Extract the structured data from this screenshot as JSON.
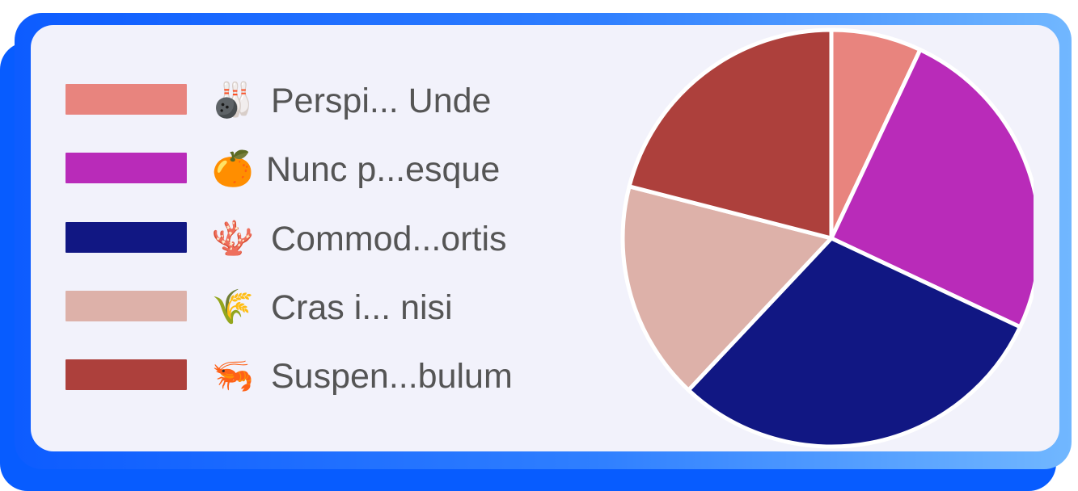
{
  "chart_data": {
    "type": "pie",
    "title": "",
    "categories": [
      "Perspi... Unde",
      "Nunc p...esque",
      "Commod...ortis",
      "Cras i... nisi",
      "Suspen...bulum"
    ],
    "values": [
      7,
      25,
      30,
      17,
      21
    ],
    "colors": [
      "#e8847e",
      "#b92bb9",
      "#111783",
      "#ddb1a9",
      "#ad403c"
    ],
    "icons": [
      "bowling-icon",
      "tangerine-icon",
      "brain-coral-icon",
      "wheat-icon",
      "shrimp-icon"
    ],
    "icon_glyphs": [
      "🎳",
      "🍊",
      "🪸",
      "🌾",
      "🦐"
    ],
    "legend_position": "left"
  }
}
